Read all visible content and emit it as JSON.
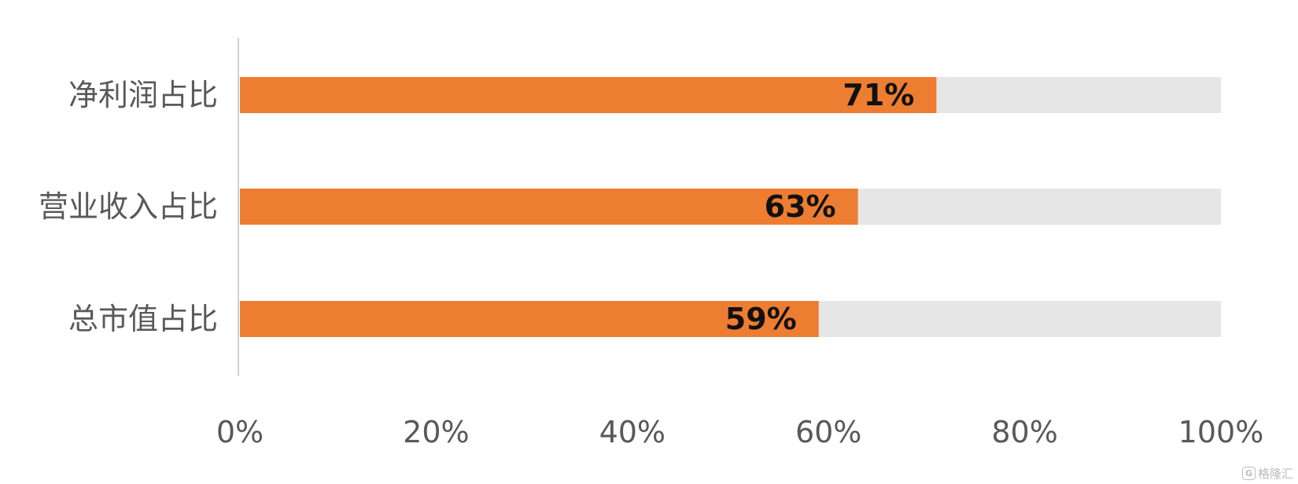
{
  "chart_data": {
    "type": "bar",
    "orientation": "horizontal",
    "stacked_to_100": true,
    "categories": [
      "净利润占比",
      "营业收入占比",
      "总市值占比"
    ],
    "values": [
      71,
      63,
      59
    ],
    "data_labels": [
      "71%",
      "63%",
      "59%"
    ],
    "xlim": [
      0,
      100
    ],
    "ticks": [
      0,
      20,
      40,
      60,
      80,
      100
    ],
    "tick_labels": [
      "0%",
      "20%",
      "40%",
      "60%",
      "80%",
      "100%"
    ],
    "title": "",
    "xlabel": "",
    "ylabel": "",
    "grid": false,
    "colors": {
      "value": "#ED7D31",
      "remainder": "#E7E6E6",
      "axis": "#D0D0D0",
      "label_text": "#595959",
      "data_label_text": "#111111"
    }
  },
  "watermark": {
    "icon": "G",
    "text": "格隆汇"
  }
}
